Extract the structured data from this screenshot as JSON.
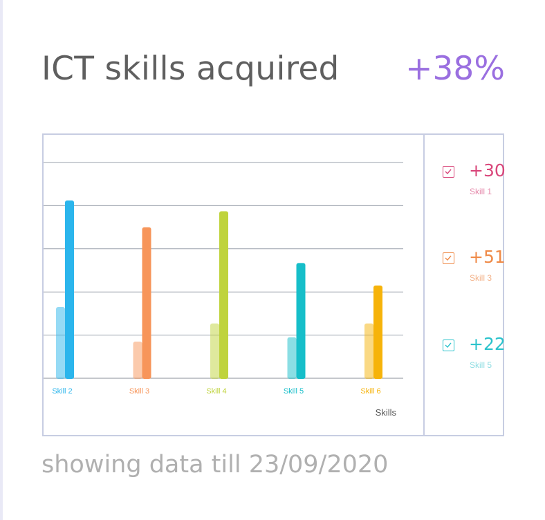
{
  "header": {
    "title": "ICT skills acquired",
    "headline_value": "+38%",
    "headline_color": "#9a6fe0"
  },
  "chart_data": {
    "type": "bar",
    "xlabel": "Skills",
    "ylabel": "",
    "ylim": [
      0,
      5
    ],
    "grid": true,
    "categories": [
      "Skill 2",
      "Skill 3",
      "Skill 4",
      "Skill 5",
      "Skill 6"
    ],
    "category_colors": [
      "#2bb5ec",
      "#f7955a",
      "#bfd33c",
      "#16bec9",
      "#f6b30a"
    ],
    "series": [
      {
        "values": [
          1.65,
          0.85,
          1.27,
          0.95,
          1.27
        ],
        "opacity": 0.5
      },
      {
        "values": [
          4.12,
          3.5,
          3.87,
          2.67,
          2.15
        ],
        "opacity": 1.0
      }
    ]
  },
  "legend": {
    "items": [
      {
        "value": "+30",
        "label": "Skill 1",
        "color": "#d9467a",
        "label_color": "#e58aab"
      },
      {
        "value": "+51",
        "label": "Skill 3",
        "color": "#ef8a47",
        "label_color": "#f3b38b"
      },
      {
        "value": "+22",
        "label": "Skill 5",
        "color": "#2bc3cc",
        "label_color": "#8fdde2"
      }
    ]
  },
  "footer": {
    "text": "showing data till 23/09/2020"
  }
}
